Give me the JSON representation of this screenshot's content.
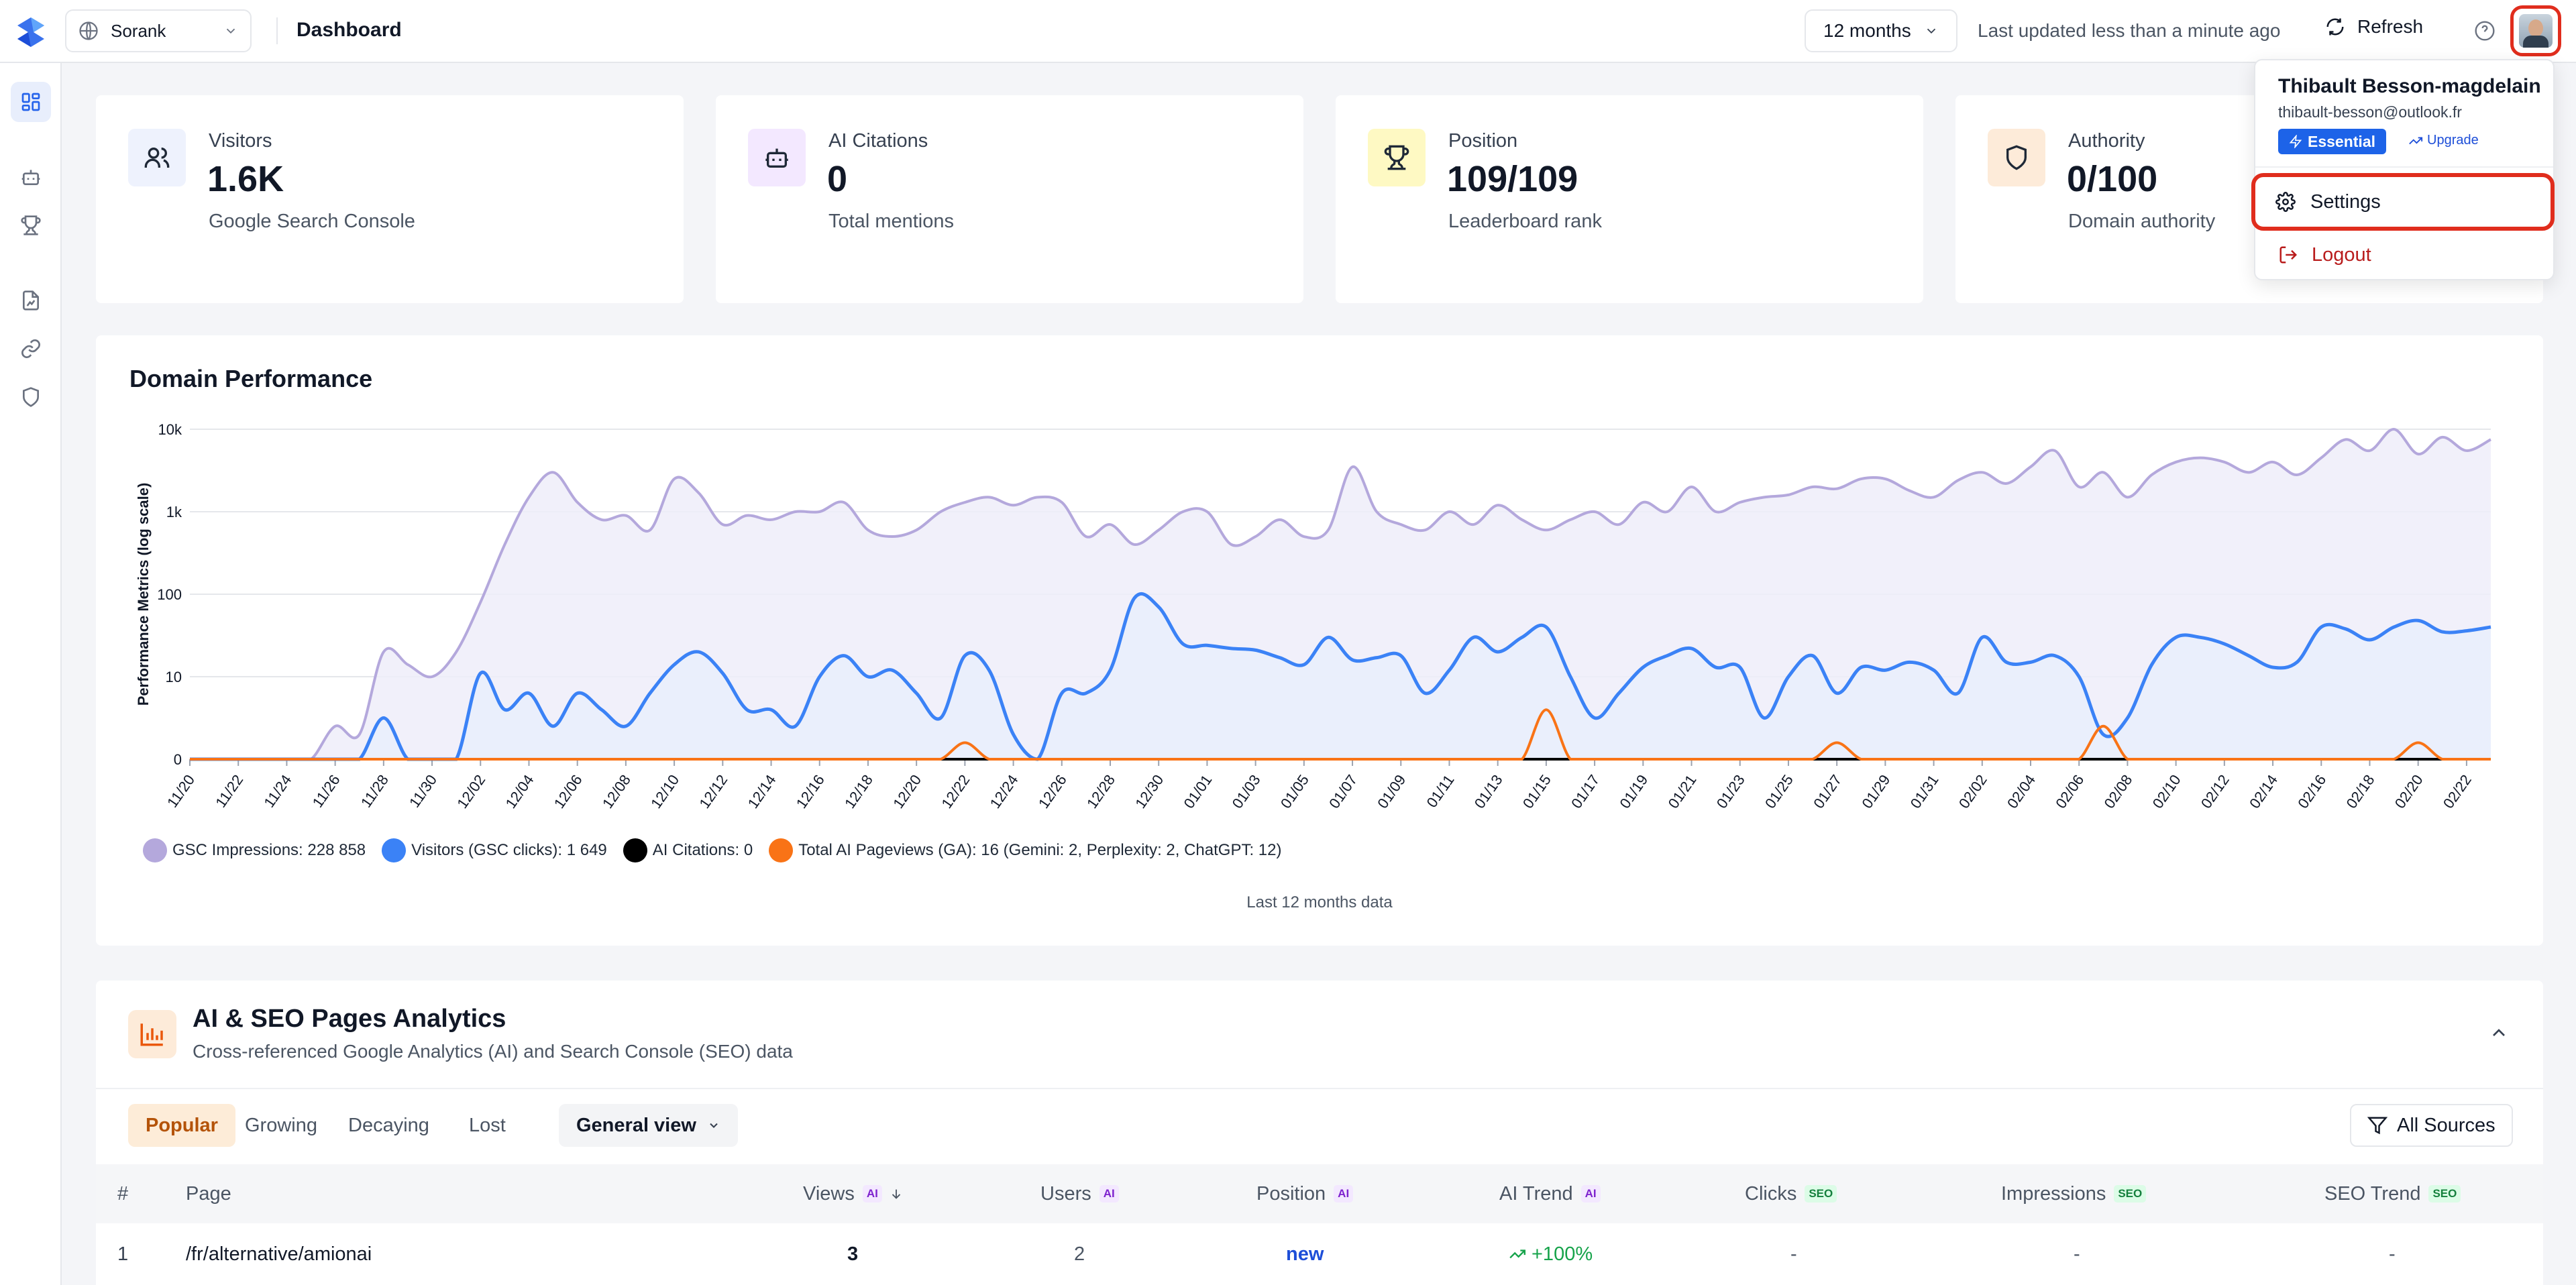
{
  "header": {
    "site_select": "Sorank",
    "title": "Dashboard",
    "range": "12 months",
    "last_updated": "Last updated less than a minute ago",
    "refresh_label": "Refresh"
  },
  "sidebar": {
    "items": [
      {
        "icon": "dashboard-icon",
        "active": true
      },
      {
        "icon": "bot-icon",
        "active": false
      },
      {
        "icon": "trophy-icon",
        "active": false
      },
      {
        "icon": "file-chart-icon",
        "active": false
      },
      {
        "icon": "link-icon",
        "active": false
      },
      {
        "icon": "shield-icon",
        "active": false
      }
    ]
  },
  "stats": [
    {
      "label": "Visitors",
      "value": "1.6K",
      "sub": "Google Search Console",
      "icon": "users-icon",
      "bg": "#eef2fd",
      "color": "#1f2937"
    },
    {
      "label": "AI Citations",
      "value": "0",
      "sub": "Total mentions",
      "icon": "bot-icon",
      "bg": "#f3e8ff",
      "color": "#1f2937"
    },
    {
      "label": "Position",
      "value": "109/109",
      "sub": "Leaderboard rank",
      "icon": "trophy-icon",
      "bg": "#fef9c3",
      "color": "#1f2937"
    },
    {
      "label": "Authority",
      "value": "0/100",
      "sub": "Domain authority",
      "icon": "shield-icon",
      "bg": "#fdebd9",
      "color": "#1f2937"
    }
  ],
  "performance": {
    "title": "Domain Performance",
    "footer": "Last 12 months data",
    "legend": [
      {
        "label": "GSC Impressions: 228 858",
        "color": "#b4a8dc"
      },
      {
        "label": "Visitors (GSC clicks): 1 649",
        "color": "#3b82f6"
      },
      {
        "label": "AI Citations: 0",
        "color": "#000000"
      },
      {
        "label": "Total AI Pageviews (GA): 16 (Gemini: 2, Perplexity: 2, ChatGPT: 12)",
        "color": "#f97316"
      }
    ]
  },
  "chart_data": {
    "type": "line",
    "ylabel": "Performance Metrics (log scale)",
    "yscale": "log",
    "yticks": [
      "0",
      "10",
      "100",
      "1k",
      "10k"
    ],
    "x": [
      "11/20",
      "11/21",
      "11/22",
      "11/23",
      "11/24",
      "11/25",
      "11/26",
      "11/27",
      "11/28",
      "11/29",
      "11/30",
      "12/01",
      "12/02",
      "12/03",
      "12/04",
      "12/05",
      "12/06",
      "12/07",
      "12/08",
      "12/09",
      "12/10",
      "12/11",
      "12/12",
      "12/13",
      "12/14",
      "12/15",
      "12/16",
      "12/17",
      "12/18",
      "12/19",
      "12/20",
      "12/21",
      "12/22",
      "12/23",
      "12/24",
      "12/25",
      "12/26",
      "12/27",
      "12/28",
      "12/29",
      "12/30",
      "12/31",
      "01/01",
      "01/02",
      "01/03",
      "01/04",
      "01/05",
      "01/06",
      "01/07",
      "01/08",
      "01/09",
      "01/10",
      "01/11",
      "01/12",
      "01/13",
      "01/14",
      "01/15",
      "01/16",
      "01/17",
      "01/18",
      "01/19",
      "01/20",
      "01/21",
      "01/22",
      "01/23",
      "01/24",
      "01/25",
      "01/26",
      "01/27",
      "01/28",
      "01/29",
      "01/30",
      "01/31",
      "02/01",
      "02/02",
      "02/03",
      "02/04",
      "02/05",
      "02/06",
      "02/07",
      "02/08",
      "02/09",
      "02/10",
      "02/11",
      "02/12",
      "02/13",
      "02/14",
      "02/15",
      "02/16",
      "02/17",
      "02/18",
      "02/19",
      "02/20",
      "02/21",
      "02/22",
      "02/23"
    ],
    "xtick_labels": [
      "11/20",
      "11/22",
      "11/24",
      "11/26",
      "11/28",
      "11/30",
      "12/02",
      "12/04",
      "12/06",
      "12/08",
      "12/10",
      "12/12",
      "12/14",
      "12/16",
      "12/18",
      "12/20",
      "12/22",
      "12/24",
      "12/26",
      "12/28",
      "12/30",
      "01/01",
      "01/03",
      "01/05",
      "01/07",
      "01/09",
      "01/11",
      "01/13",
      "01/15",
      "01/17",
      "01/19",
      "01/21",
      "01/23",
      "01/25",
      "01/27",
      "01/29",
      "01/31",
      "02/02",
      "02/04",
      "02/06",
      "02/08",
      "02/10",
      "02/12",
      "02/14",
      "02/16",
      "02/18",
      "02/20",
      "02/22"
    ],
    "series": [
      {
        "name": "GSC Impressions",
        "color": "#b4a8dc",
        "fill": "#efedf9",
        "values": [
          0,
          0,
          0,
          0,
          0,
          0,
          4,
          3,
          20,
          14,
          10,
          20,
          80,
          400,
          1500,
          3000,
          1300,
          800,
          900,
          600,
          2500,
          1700,
          700,
          900,
          800,
          1000,
          1000,
          1300,
          600,
          500,
          600,
          1000,
          1300,
          1500,
          1200,
          1500,
          1300,
          500,
          700,
          400,
          600,
          1000,
          1000,
          400,
          500,
          800,
          500,
          600,
          3500,
          1000,
          700,
          600,
          1000,
          700,
          1200,
          800,
          600,
          800,
          1000,
          700,
          1300,
          1000,
          2000,
          1000,
          1300,
          1500,
          1600,
          2000,
          1900,
          2500,
          2500,
          1800,
          1500,
          2400,
          3000,
          2200,
          3500,
          5500,
          2000,
          3000,
          1500,
          2800,
          4000,
          4500,
          4000,
          3000,
          4000,
          2800,
          4500,
          7500,
          5500,
          10000,
          5000,
          8000,
          5500,
          7500
        ]
      },
      {
        "name": "Visitors (GSC clicks)",
        "color": "#3b82f6",
        "fill": "#e9eefc",
        "values": [
          0,
          0,
          0,
          0,
          0,
          0,
          0,
          0,
          5,
          0,
          0,
          0,
          11,
          6,
          8,
          4,
          8,
          6,
          4,
          8,
          14,
          20,
          11,
          6,
          6,
          4,
          10,
          18,
          10,
          12,
          8,
          5,
          18,
          12,
          3,
          0,
          8,
          8,
          12,
          90,
          70,
          25,
          24,
          22,
          21,
          17,
          14,
          30,
          16,
          17,
          18,
          8,
          12,
          30,
          20,
          30,
          40,
          10,
          5,
          8,
          13,
          18,
          22,
          13,
          13,
          5,
          10,
          18,
          8,
          13,
          12,
          15,
          12,
          8,
          30,
          15,
          15,
          18,
          10,
          3,
          5,
          14,
          30,
          30,
          25,
          18,
          13,
          15,
          40,
          38,
          28,
          40,
          48,
          35,
          36,
          40
        ]
      },
      {
        "name": "AI Citations",
        "color": "#000000",
        "fill": "none",
        "values": [
          0,
          0,
          0,
          0,
          0,
          0,
          0,
          0,
          0,
          0,
          0,
          0,
          0,
          0,
          0,
          0,
          0,
          0,
          0,
          0,
          0,
          0,
          0,
          0,
          0,
          0,
          0,
          0,
          0,
          0,
          0,
          0,
          0,
          0,
          0,
          0,
          0,
          0,
          0,
          0,
          0,
          0,
          0,
          0,
          0,
          0,
          0,
          0,
          0,
          0,
          0,
          0,
          0,
          0,
          0,
          0,
          0,
          0,
          0,
          0,
          0,
          0,
          0,
          0,
          0,
          0,
          0,
          0,
          0,
          0,
          0,
          0,
          0,
          0,
          0,
          0,
          0,
          0,
          0,
          0,
          0,
          0,
          0,
          0,
          0,
          0,
          0,
          0,
          0,
          0,
          0,
          0,
          0,
          0,
          0,
          0
        ]
      },
      {
        "name": "Total AI Pageviews (GA)",
        "color": "#f97316",
        "fill": "none",
        "values": [
          0,
          0,
          0,
          0,
          0,
          0,
          0,
          0,
          0,
          0,
          0,
          0,
          0,
          0,
          0,
          0,
          0,
          0,
          0,
          0,
          0,
          0,
          0,
          0,
          0,
          0,
          0,
          0,
          0,
          0,
          0,
          0,
          2,
          0,
          0,
          0,
          0,
          0,
          0,
          0,
          0,
          0,
          0,
          0,
          0,
          0,
          0,
          0,
          0,
          0,
          0,
          0,
          0,
          0,
          0,
          0,
          6,
          0,
          0,
          0,
          0,
          0,
          0,
          0,
          0,
          0,
          0,
          0,
          2,
          0,
          0,
          0,
          0,
          0,
          0,
          0,
          0,
          0,
          0,
          4,
          0,
          0,
          0,
          0,
          0,
          0,
          0,
          0,
          0,
          0,
          0,
          0,
          2,
          0,
          0,
          0
        ]
      }
    ]
  },
  "analytics": {
    "title": "AI & SEO Pages Analytics",
    "subtitle": "Cross-referenced Google Analytics (AI) and Search Console (SEO) data",
    "tabs": [
      "Popular",
      "Growing",
      "Decaying",
      "Lost"
    ],
    "active_tab": "Popular",
    "view_select": "General view",
    "sources_button": "All Sources",
    "columns": {
      "num": "#",
      "page": "Page",
      "views": "Views",
      "users": "Users",
      "position": "Position",
      "ai_trend": "AI Trend",
      "clicks": "Clicks",
      "impressions": "Impressions",
      "seo_trend": "SEO Trend",
      "ai_tag": "AI",
      "seo_tag": "SEO"
    },
    "rows": [
      {
        "num": "1",
        "page": "/fr/alternative/amionai",
        "views": "3",
        "users": "2",
        "position": "new",
        "ai_trend": "+100%",
        "clicks": "-",
        "impressions": "-",
        "seo_trend": "-"
      }
    ]
  },
  "user_menu": {
    "name": "Thibault Besson-magdelain",
    "email": "thibault-besson@outlook.fr",
    "plan": "Essential",
    "upgrade": "Upgrade",
    "settings": "Settings",
    "logout": "Logout"
  }
}
